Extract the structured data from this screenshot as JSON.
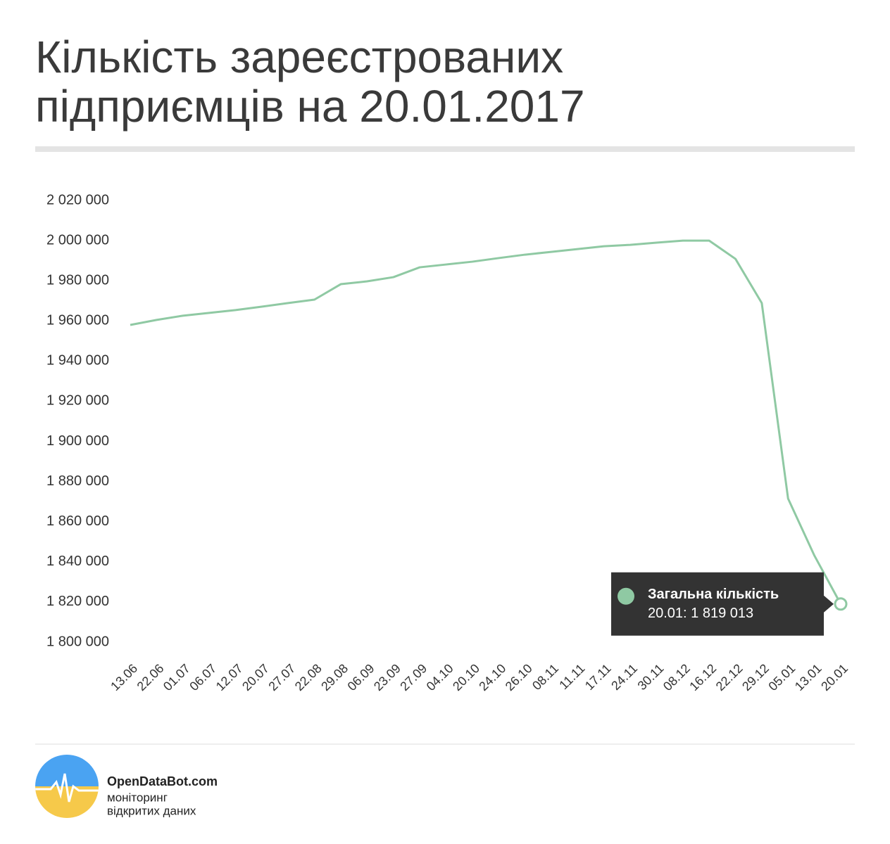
{
  "chart_data": {
    "type": "line",
    "title": "Кількість зареєстрованих підприємців на 20.01.2017",
    "categories": [
      "13.06",
      "22.06",
      "01.07",
      "06.07",
      "12.07",
      "20.07",
      "27.07",
      "22.08",
      "29.08",
      "06.09",
      "23.09",
      "27.09",
      "04.10",
      "20.10",
      "24.10",
      "26.10",
      "08.11",
      "11.11",
      "17.11",
      "24.11",
      "30.11",
      "08.12",
      "16.12",
      "22.12",
      "29.12",
      "05.01",
      "13.01",
      "20.01"
    ],
    "series": [
      {
        "name": "Загальна кількість",
        "color": "#8fc9a3",
        "values": [
          1958000,
          1960500,
          1962600,
          1964000,
          1965400,
          1967100,
          1968900,
          1970600,
          1978300,
          1979700,
          1981800,
          1986700,
          1988100,
          1989500,
          1991300,
          1993000,
          1994400,
          1995800,
          1997200,
          1997900,
          1999000,
          2000000,
          2000000,
          1990900,
          1968900,
          1871500,
          1843100,
          1819013
        ]
      }
    ],
    "tooltip": "20.01: 1 819 013",
    "ylim": [
      1800000,
      2020000
    ],
    "yticks": [
      {
        "value": 1800000,
        "label": "1 800 000"
      },
      {
        "value": 1820000,
        "label": "1 820 000"
      },
      {
        "value": 1840000,
        "label": "1 840 000"
      },
      {
        "value": 1860000,
        "label": "1 860 000"
      },
      {
        "value": 1880000,
        "label": "1 880 000"
      },
      {
        "value": 1900000,
        "label": "1 900 000"
      },
      {
        "value": 1920000,
        "label": "1 920 000"
      },
      {
        "value": 1940000,
        "label": "1 940 000"
      },
      {
        "value": 1960000,
        "label": "1 960 000"
      },
      {
        "value": 1980000,
        "label": "1 980 000"
      },
      {
        "value": 2000000,
        "label": "2 000 000"
      },
      {
        "value": 2020000,
        "label": "2 020 000"
      }
    ],
    "grid": false
  },
  "footer": {
    "brand": "OpenDataBot.com",
    "tagline": [
      "моніторинг",
      "відкритих даних"
    ]
  }
}
